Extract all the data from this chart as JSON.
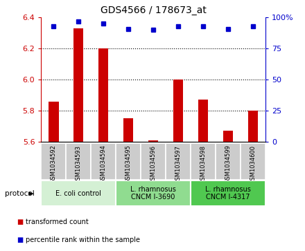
{
  "title": "GDS4566 / 178673_at",
  "samples": [
    "GSM1034592",
    "GSM1034593",
    "GSM1034594",
    "GSM1034595",
    "GSM1034596",
    "GSM1034597",
    "GSM1034598",
    "GSM1034599",
    "GSM1034600"
  ],
  "red_values": [
    5.86,
    6.33,
    6.2,
    5.75,
    5.61,
    6.0,
    5.87,
    5.67,
    5.8
  ],
  "blue_values": [
    93,
    97,
    95,
    91,
    90,
    93,
    93,
    91,
    93
  ],
  "ylim_left": [
    5.6,
    6.4
  ],
  "ylim_right": [
    0,
    100
  ],
  "yticks_left": [
    5.6,
    5.8,
    6.0,
    6.2,
    6.4
  ],
  "yticks_right": [
    0,
    25,
    50,
    75,
    100
  ],
  "grid_lines": [
    5.8,
    6.0,
    6.2
  ],
  "groups": [
    {
      "label": "E. coli control",
      "start": 0,
      "end": 3,
      "color": "#d4f0d4"
    },
    {
      "label": "L. rhamnosus\nCNCM I-3690",
      "start": 3,
      "end": 6,
      "color": "#90dc90"
    },
    {
      "label": "L. rhamnosus\nCNCM I-4317",
      "start": 6,
      "end": 9,
      "color": "#50c850"
    }
  ],
  "red_color": "#cc0000",
  "blue_color": "#0000cc",
  "bar_bg": "#cccccc",
  "left_tick_color": "#cc0000",
  "right_tick_color": "#0000cc",
  "legend_red": "transformed count",
  "legend_blue": "percentile rank within the sample",
  "protocol_label": "protocol"
}
